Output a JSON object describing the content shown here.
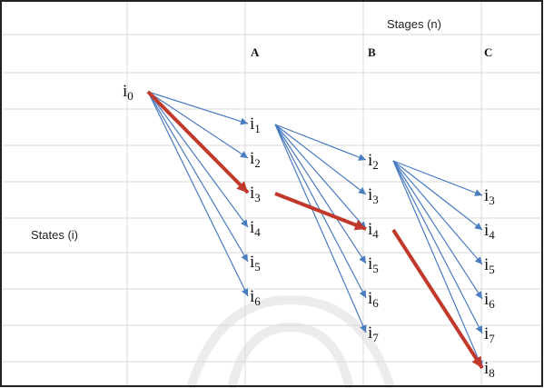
{
  "header": {
    "stages": "Stages (n)"
  },
  "row_label": {
    "states": "States (i)"
  },
  "columns": [
    "A",
    "B",
    "C"
  ],
  "nodes": [
    {
      "id": "i0",
      "base": "i",
      "sub": "0",
      "stage": "start"
    },
    {
      "id": "A1",
      "base": "i",
      "sub": "1",
      "stage": "A"
    },
    {
      "id": "A2",
      "base": "i",
      "sub": "2",
      "stage": "A"
    },
    {
      "id": "A3",
      "base": "i",
      "sub": "3",
      "stage": "A"
    },
    {
      "id": "A4",
      "base": "i",
      "sub": "4",
      "stage": "A"
    },
    {
      "id": "A5",
      "base": "i",
      "sub": "5",
      "stage": "A"
    },
    {
      "id": "A6",
      "base": "i",
      "sub": "6",
      "stage": "A"
    },
    {
      "id": "B2",
      "base": "i",
      "sub": "2",
      "stage": "B"
    },
    {
      "id": "B3",
      "base": "i",
      "sub": "3",
      "stage": "B"
    },
    {
      "id": "B4",
      "base": "i",
      "sub": "4",
      "stage": "B"
    },
    {
      "id": "B5",
      "base": "i",
      "sub": "5",
      "stage": "B"
    },
    {
      "id": "B6",
      "base": "i",
      "sub": "6",
      "stage": "B"
    },
    {
      "id": "B7",
      "base": "i",
      "sub": "7",
      "stage": "B"
    },
    {
      "id": "C3",
      "base": "i",
      "sub": "3",
      "stage": "C"
    },
    {
      "id": "C4",
      "base": "i",
      "sub": "4",
      "stage": "C"
    },
    {
      "id": "C5",
      "base": "i",
      "sub": "5",
      "stage": "C"
    },
    {
      "id": "C6",
      "base": "i",
      "sub": "6",
      "stage": "C"
    },
    {
      "id": "C7",
      "base": "i",
      "sub": "7",
      "stage": "C"
    },
    {
      "id": "C8",
      "base": "i",
      "sub": "8",
      "stage": "C"
    }
  ],
  "edges": [
    [
      "i0",
      "A1"
    ],
    [
      "i0",
      "A2"
    ],
    [
      "i0",
      "A3"
    ],
    [
      "i0",
      "A4"
    ],
    [
      "i0",
      "A5"
    ],
    [
      "i0",
      "A6"
    ],
    [
      "A1",
      "B2"
    ],
    [
      "A1",
      "B3"
    ],
    [
      "A1",
      "B4"
    ],
    [
      "A1",
      "B5"
    ],
    [
      "A1",
      "B6"
    ],
    [
      "A1",
      "B7"
    ],
    [
      "B2",
      "C3"
    ],
    [
      "B2",
      "C4"
    ],
    [
      "B2",
      "C5"
    ],
    [
      "B2",
      "C6"
    ],
    [
      "B2",
      "C7"
    ],
    [
      "B2",
      "C8"
    ]
  ],
  "optimal_path": [
    [
      "i0",
      "A3"
    ],
    [
      "A3",
      "B4"
    ],
    [
      "B4",
      "C8"
    ]
  ],
  "colors": {
    "edge": "#4a7cc0",
    "optimal": "#c0392b",
    "grid": "#d9d9d9",
    "border": "#222222",
    "watermark": "#c9c9c9"
  }
}
